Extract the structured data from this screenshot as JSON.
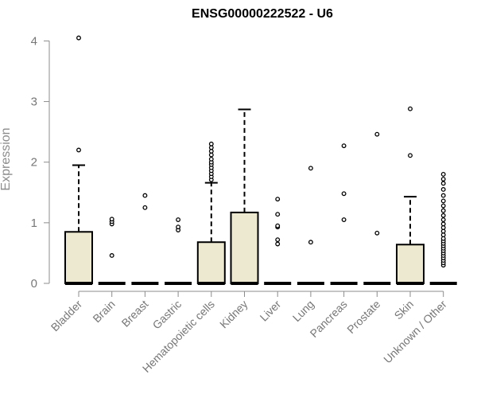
{
  "colors": {
    "box_fill": "#ede8d0",
    "stroke": "#000000",
    "axis": "#8c8c8c",
    "text_muted": "#777777"
  },
  "chart_data": {
    "type": "box",
    "title": "ENSG00000222522 - U6",
    "xlabel": "",
    "ylabel": "Expression",
    "ylim": [
      0,
      4.15
    ],
    "yticks": [
      0,
      1,
      2,
      3,
      4
    ],
    "grid": false,
    "legend": "none",
    "categories": [
      "Bladder",
      "Brain",
      "Breast",
      "Gastric",
      "Hematopoietic cells",
      "Kidney",
      "Liver",
      "Lung",
      "Pancreas",
      "Prostate",
      "Skin",
      "Unknown / Other"
    ],
    "boxes": [
      {
        "name": "Bladder",
        "q1": 0,
        "median": 0,
        "q3": 0.85,
        "whisker_low": 0,
        "whisker_high": 1.95,
        "outliers": [
          2.2,
          4.05
        ]
      },
      {
        "name": "Brain",
        "q1": 0,
        "median": 0,
        "q3": 0,
        "whisker_low": 0,
        "whisker_high": 0,
        "outliers": [
          0.46,
          0.98,
          1.02,
          1.06
        ]
      },
      {
        "name": "Breast",
        "q1": 0,
        "median": 0,
        "q3": 0,
        "whisker_low": 0,
        "whisker_high": 0,
        "outliers": [
          1.25,
          1.45
        ]
      },
      {
        "name": "Gastric",
        "q1": 0,
        "median": 0,
        "q3": 0,
        "whisker_low": 0,
        "whisker_high": 0,
        "outliers": [
          0.88,
          0.93,
          1.05
        ]
      },
      {
        "name": "Hematopoietic cells",
        "q1": 0,
        "median": 0,
        "q3": 0.68,
        "whisker_low": 0,
        "whisker_high": 1.66,
        "outliers": [
          1.71,
          1.76,
          1.81,
          1.86,
          1.91,
          1.96,
          2.0,
          2.05,
          2.12,
          2.18,
          2.24,
          2.3
        ]
      },
      {
        "name": "Kidney",
        "q1": 0,
        "median": 0,
        "q3": 1.17,
        "whisker_low": 0,
        "whisker_high": 2.87,
        "outliers": []
      },
      {
        "name": "Liver",
        "q1": 0,
        "median": 0,
        "q3": 0,
        "whisker_low": 0,
        "whisker_high": 0,
        "outliers": [
          0.65,
          0.72,
          0.93,
          0.95,
          1.14,
          1.39
        ]
      },
      {
        "name": "Lung",
        "q1": 0,
        "median": 0,
        "q3": 0,
        "whisker_low": 0,
        "whisker_high": 0,
        "outliers": [
          0.68,
          1.9
        ]
      },
      {
        "name": "Pancreas",
        "q1": 0,
        "median": 0,
        "q3": 0,
        "whisker_low": 0,
        "whisker_high": 0,
        "outliers": [
          1.05,
          1.48,
          2.27
        ]
      },
      {
        "name": "Prostate",
        "q1": 0,
        "median": 0,
        "q3": 0,
        "whisker_low": 0,
        "whisker_high": 0,
        "outliers": [
          0.83,
          2.46
        ]
      },
      {
        "name": "Skin",
        "q1": 0,
        "median": 0,
        "q3": 0.64,
        "whisker_low": 0,
        "whisker_high": 1.43,
        "outliers": [
          2.11,
          2.88
        ]
      },
      {
        "name": "Unknown / Other",
        "q1": 0,
        "median": 0,
        "q3": 0,
        "whisker_low": 0,
        "whisker_high": 0,
        "outliers": [
          0.3,
          0.34,
          0.38,
          0.42,
          0.46,
          0.5,
          0.54,
          0.58,
          0.62,
          0.66,
          0.7,
          0.74,
          0.8,
          0.86,
          0.92,
          0.98,
          1.05,
          1.12,
          1.2,
          1.28,
          1.36,
          1.45,
          1.55,
          1.65,
          1.72,
          1.8
        ]
      }
    ]
  }
}
